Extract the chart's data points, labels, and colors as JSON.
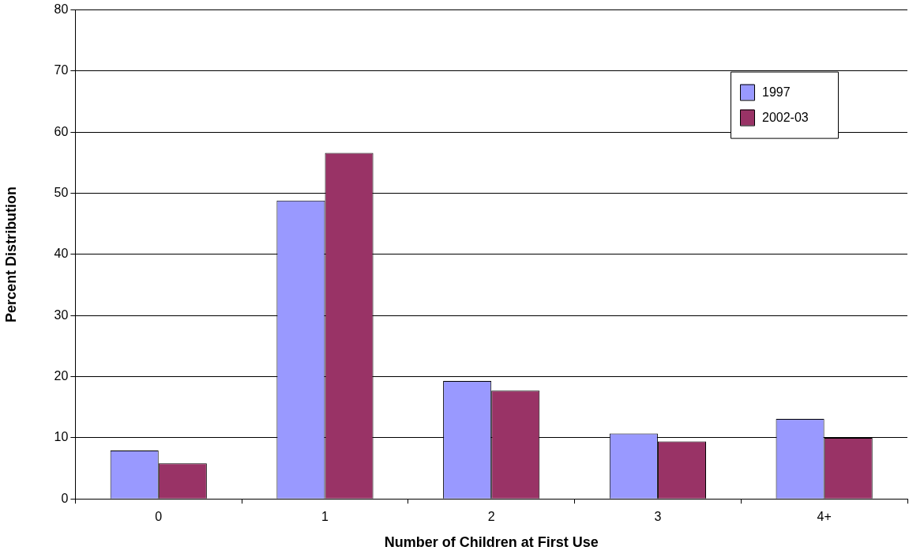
{
  "chart_data": {
    "type": "bar",
    "xlabel": "Number of Children at First Use",
    "ylabel": "Percent Distribution",
    "categories": [
      "0",
      "1",
      "2",
      "3",
      "4+"
    ],
    "series": [
      {
        "name": "1997",
        "color": "#9999ff",
        "values": [
          7.9,
          48.8,
          19.3,
          10.7,
          13.1
        ]
      },
      {
        "name": "2002-03",
        "color": "#993366",
        "values": [
          5.8,
          56.6,
          17.7,
          9.4,
          10.0
        ]
      }
    ],
    "ylim": [
      0,
      80
    ],
    "yticks": [
      0,
      10,
      20,
      30,
      40,
      50,
      60,
      70,
      80
    ],
    "grid": "y",
    "legend": "top right"
  }
}
